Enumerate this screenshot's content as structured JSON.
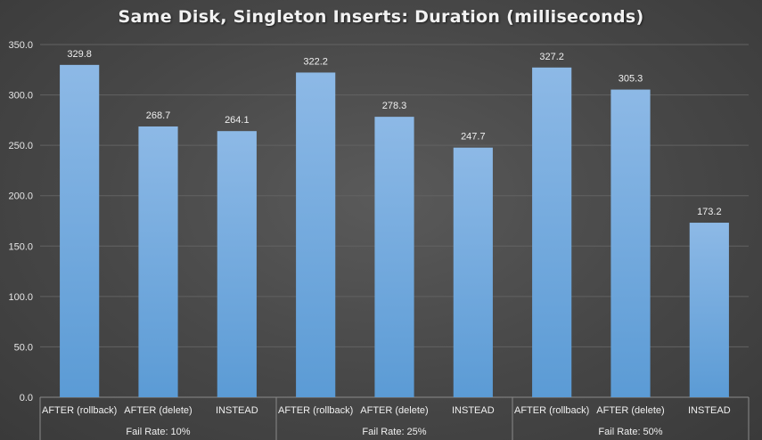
{
  "chart_data": {
    "type": "bar",
    "title": "Same Disk, Singleton Inserts: Duration (milliseconds)",
    "xlabel": "",
    "ylabel": "",
    "ylim": [
      0,
      350
    ],
    "yticks": [
      "0.0",
      "50.0",
      "100.0",
      "150.0",
      "200.0",
      "250.0",
      "300.0",
      "350.0"
    ],
    "grid": true,
    "legend": "none",
    "bar_color": "#6fa8dc",
    "groups": [
      {
        "label": "Fail Rate: 10%",
        "categories": [
          "AFTER (rollback)",
          "AFTER (delete)",
          "INSTEAD"
        ],
        "values": [
          329.8,
          268.7,
          264.1
        ],
        "value_labels": [
          "329.8",
          "268.7",
          "264.1"
        ]
      },
      {
        "label": "Fail Rate: 25%",
        "categories": [
          "AFTER (rollback)",
          "AFTER (delete)",
          "INSTEAD"
        ],
        "values": [
          322.2,
          278.3,
          247.7
        ],
        "value_labels": [
          "322.2",
          "278.3",
          "247.7"
        ]
      },
      {
        "label": "Fail Rate: 50%",
        "categories": [
          "AFTER (rollback)",
          "AFTER (delete)",
          "INSTEAD"
        ],
        "values": [
          327.2,
          305.3,
          173.2
        ],
        "value_labels": [
          "327.2",
          "305.3",
          "173.2"
        ]
      }
    ]
  }
}
